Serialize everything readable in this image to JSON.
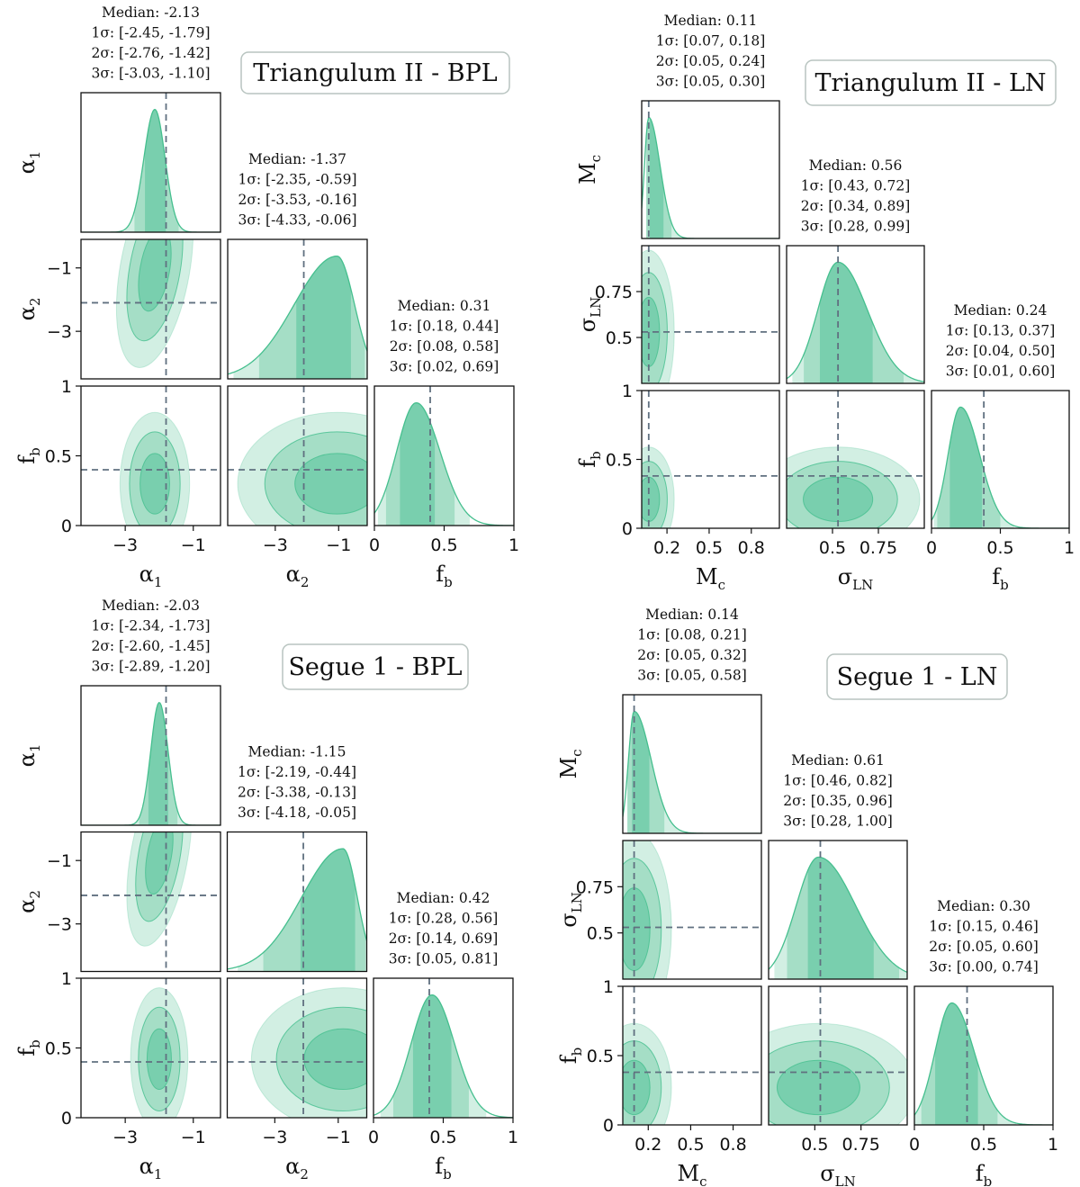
{
  "colors": {
    "fill_light": "#d2efe3",
    "fill_mid": "#a5dec6",
    "fill_dark": "#79cfae",
    "line": "#45bf8e",
    "truth": "#607080"
  },
  "chart_data": [
    {
      "type": "corner",
      "title": "Triangulum II - BPL",
      "params": [
        {
          "id": "a1",
          "label": "α",
          "sub": "1",
          "range": [
            -4.3,
            -0.2
          ],
          "ticks": [
            -3,
            -1
          ],
          "truth": -1.8,
          "stats": {
            "median": "Median: -2.13",
            "s1": "1σ: [-2.45, -1.79]",
            "s2": "2σ: [-2.76, -1.42]",
            "s3": "3σ: [-3.03, -1.10]"
          },
          "bands": {
            "s1": [
              -2.45,
              -1.79
            ],
            "s2": [
              -2.76,
              -1.42
            ],
            "s3": [
              -3.03,
              -1.1
            ]
          }
        },
        {
          "id": "a2",
          "label": "α",
          "sub": "2",
          "range": [
            -4.5,
            -0.1
          ],
          "ticks": [
            -3,
            -1
          ],
          "truth": -2.1,
          "stats": {
            "median": "Median: -1.37",
            "s1": "1σ: [-2.35, -0.59]",
            "s2": "2σ: [-3.53, -0.16]",
            "s3": "3σ: [-4.33, -0.06]"
          },
          "bands": {
            "s1": [
              -2.35,
              -0.59
            ],
            "s2": [
              -3.53,
              -0.16
            ],
            "s3": [
              -4.33,
              -0.06
            ]
          }
        },
        {
          "id": "fb",
          "label": "f",
          "sub": "b",
          "range": [
            0,
            1
          ],
          "ticks": [
            0,
            0.5,
            1
          ],
          "truth": 0.4,
          "stats": {
            "median": "Median: 0.31",
            "s1": "1σ: [0.18, 0.44]",
            "s2": "2σ: [0.08, 0.58]",
            "s3": "3σ: [0.02, 0.69]"
          },
          "bands": {
            "s1": [
              0.18,
              0.44
            ],
            "s2": [
              0.08,
              0.58
            ],
            "s3": [
              0.02,
              0.69
            ]
          }
        }
      ]
    },
    {
      "type": "corner",
      "title": "Triangulum II - LN",
      "params": [
        {
          "id": "mc",
          "label": "M",
          "sub": "c",
          "range": [
            0.02,
            1.0
          ],
          "ticks": [
            0.2,
            0.5,
            0.8
          ],
          "truth": 0.07,
          "stats": {
            "median": "Median: 0.11",
            "s1": "1σ: [0.07, 0.18]",
            "s2": "2σ: [0.05, 0.24]",
            "s3": "3σ: [0.05, 0.30]"
          },
          "bands": {
            "s1": [
              0.07,
              0.18
            ],
            "s2": [
              0.05,
              0.24
            ],
            "s3": [
              0.05,
              0.3
            ]
          }
        },
        {
          "id": "sln",
          "label": "σ",
          "sub": "LN",
          "range": [
            0.25,
            1.0
          ],
          "ticks": [
            0.5,
            0.75
          ],
          "truth": 0.53,
          "stats": {
            "median": "Median: 0.56",
            "s1": "1σ: [0.43, 0.72]",
            "s2": "2σ: [0.34, 0.89]",
            "s3": "3σ: [0.28, 0.99]"
          },
          "bands": {
            "s1": [
              0.43,
              0.72
            ],
            "s2": [
              0.34,
              0.89
            ],
            "s3": [
              0.28,
              0.99
            ]
          }
        },
        {
          "id": "fb",
          "label": "f",
          "sub": "b",
          "range": [
            0,
            1
          ],
          "ticks": [
            0,
            0.5,
            1
          ],
          "truth": 0.38,
          "stats": {
            "median": "Median: 0.24",
            "s1": "1σ: [0.13, 0.37]",
            "s2": "2σ: [0.04, 0.50]",
            "s3": "3σ: [0.01, 0.60]"
          },
          "bands": {
            "s1": [
              0.13,
              0.37
            ],
            "s2": [
              0.04,
              0.5
            ],
            "s3": [
              0.01,
              0.6
            ]
          }
        }
      ]
    },
    {
      "type": "corner",
      "title": "Segue 1 - BPL",
      "params": [
        {
          "id": "a1",
          "label": "α",
          "sub": "1",
          "range": [
            -4.3,
            -0.2
          ],
          "ticks": [
            -3,
            -1
          ],
          "truth": -1.8,
          "stats": {
            "median": "Median: -2.03",
            "s1": "1σ: [-2.34, -1.73]",
            "s2": "2σ: [-2.60, -1.45]",
            "s3": "3σ: [-2.89, -1.20]"
          },
          "bands": {
            "s1": [
              -2.34,
              -1.73
            ],
            "s2": [
              -2.6,
              -1.45
            ],
            "s3": [
              -2.89,
              -1.2
            ]
          }
        },
        {
          "id": "a2",
          "label": "α",
          "sub": "2",
          "range": [
            -4.5,
            -0.1
          ],
          "ticks": [
            -3,
            -1
          ],
          "truth": -2.1,
          "stats": {
            "median": "Median: -1.15",
            "s1": "1σ: [-2.19, -0.44]",
            "s2": "2σ: [-3.38, -0.13]",
            "s3": "3σ: [-4.18, -0.05]"
          },
          "bands": {
            "s1": [
              -2.19,
              -0.44
            ],
            "s2": [
              -3.38,
              -0.13
            ],
            "s3": [
              -4.18,
              -0.05
            ]
          }
        },
        {
          "id": "fb",
          "label": "f",
          "sub": "b",
          "range": [
            0,
            1
          ],
          "ticks": [
            0,
            0.5,
            1
          ],
          "truth": 0.4,
          "stats": {
            "median": "Median: 0.42",
            "s1": "1σ: [0.28, 0.56]",
            "s2": "2σ: [0.14, 0.69]",
            "s3": "3σ: [0.05, 0.81]"
          },
          "bands": {
            "s1": [
              0.28,
              0.56
            ],
            "s2": [
              0.14,
              0.69
            ],
            "s3": [
              0.05,
              0.81
            ]
          }
        }
      ]
    },
    {
      "type": "corner",
      "title": "Segue 1 - LN",
      "params": [
        {
          "id": "mc",
          "label": "M",
          "sub": "c",
          "range": [
            0.02,
            1.0
          ],
          "ticks": [
            0.2,
            0.5,
            0.8
          ],
          "truth": 0.1,
          "stats": {
            "median": "Median: 0.14",
            "s1": "1σ: [0.08, 0.21]",
            "s2": "2σ: [0.05, 0.32]",
            "s3": "3σ: [0.05, 0.58]"
          },
          "bands": {
            "s1": [
              0.08,
              0.21
            ],
            "s2": [
              0.05,
              0.32
            ],
            "s3": [
              0.05,
              0.58
            ]
          }
        },
        {
          "id": "sln",
          "label": "σ",
          "sub": "LN",
          "range": [
            0.25,
            1.0
          ],
          "ticks": [
            0.5,
            0.75
          ],
          "truth": 0.53,
          "stats": {
            "median": "Median: 0.61",
            "s1": "1σ: [0.46, 0.82]",
            "s2": "2σ: [0.35, 0.96]",
            "s3": "3σ: [0.28, 1.00]"
          },
          "bands": {
            "s1": [
              0.46,
              0.82
            ],
            "s2": [
              0.35,
              0.96
            ],
            "s3": [
              0.28,
              1.0
            ]
          }
        },
        {
          "id": "fb",
          "label": "f",
          "sub": "b",
          "range": [
            0,
            1
          ],
          "ticks": [
            0,
            0.5,
            1
          ],
          "truth": 0.38,
          "stats": {
            "median": "Median: 0.30",
            "s1": "1σ: [0.15, 0.46]",
            "s2": "2σ: [0.05, 0.60]",
            "s3": "3σ: [0.00, 0.74]"
          },
          "bands": {
            "s1": [
              0.15,
              0.46
            ],
            "s2": [
              0.05,
              0.6
            ],
            "s3": [
              0.0,
              0.74
            ]
          }
        }
      ]
    }
  ]
}
